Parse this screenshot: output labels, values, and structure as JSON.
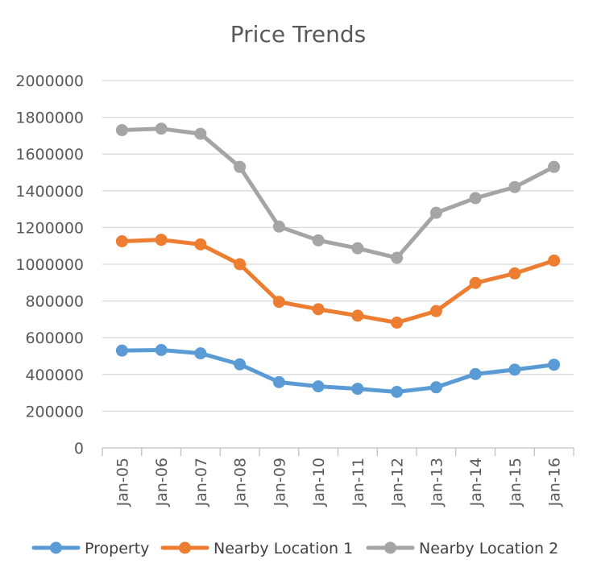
{
  "chart_data": {
    "type": "line",
    "title": "Price Trends",
    "xlabel": "",
    "ylabel": "",
    "categories": [
      "Jan-05",
      "Jan-06",
      "Jan-07",
      "Jan-08",
      "Jan-09",
      "Jan-10",
      "Jan-11",
      "Jan-12",
      "Jan-13",
      "Jan-14",
      "Jan-15",
      "Jan-16"
    ],
    "ylim": [
      0,
      2000000
    ],
    "yticks": [
      "0",
      "200000",
      "400000",
      "600000",
      "800000",
      "1000000",
      "1200000",
      "1400000",
      "1600000",
      "1800000",
      "2000000"
    ],
    "ytick_values": [
      0,
      200000,
      400000,
      600000,
      800000,
      1000000,
      1200000,
      1400000,
      1600000,
      1800000,
      2000000
    ],
    "grid": true,
    "legend_position": "bottom",
    "series": [
      {
        "name": "Property",
        "color": "#5b9bd5",
        "values": [
          530000,
          533000,
          515000,
          455000,
          358000,
          335000,
          322000,
          305000,
          330000,
          402000,
          426000,
          453000
        ]
      },
      {
        "name": "Nearby Location 1",
        "color": "#ed7d31",
        "values": [
          1125000,
          1133000,
          1108000,
          1000000,
          795000,
          755000,
          720000,
          682000,
          745000,
          898000,
          950000,
          1020000
        ]
      },
      {
        "name": "Nearby Location 2",
        "color": "#a5a5a5",
        "values": [
          1730000,
          1738000,
          1710000,
          1530000,
          1205000,
          1130000,
          1087000,
          1035000,
          1280000,
          1360000,
          1420000,
          1530000
        ]
      }
    ]
  }
}
